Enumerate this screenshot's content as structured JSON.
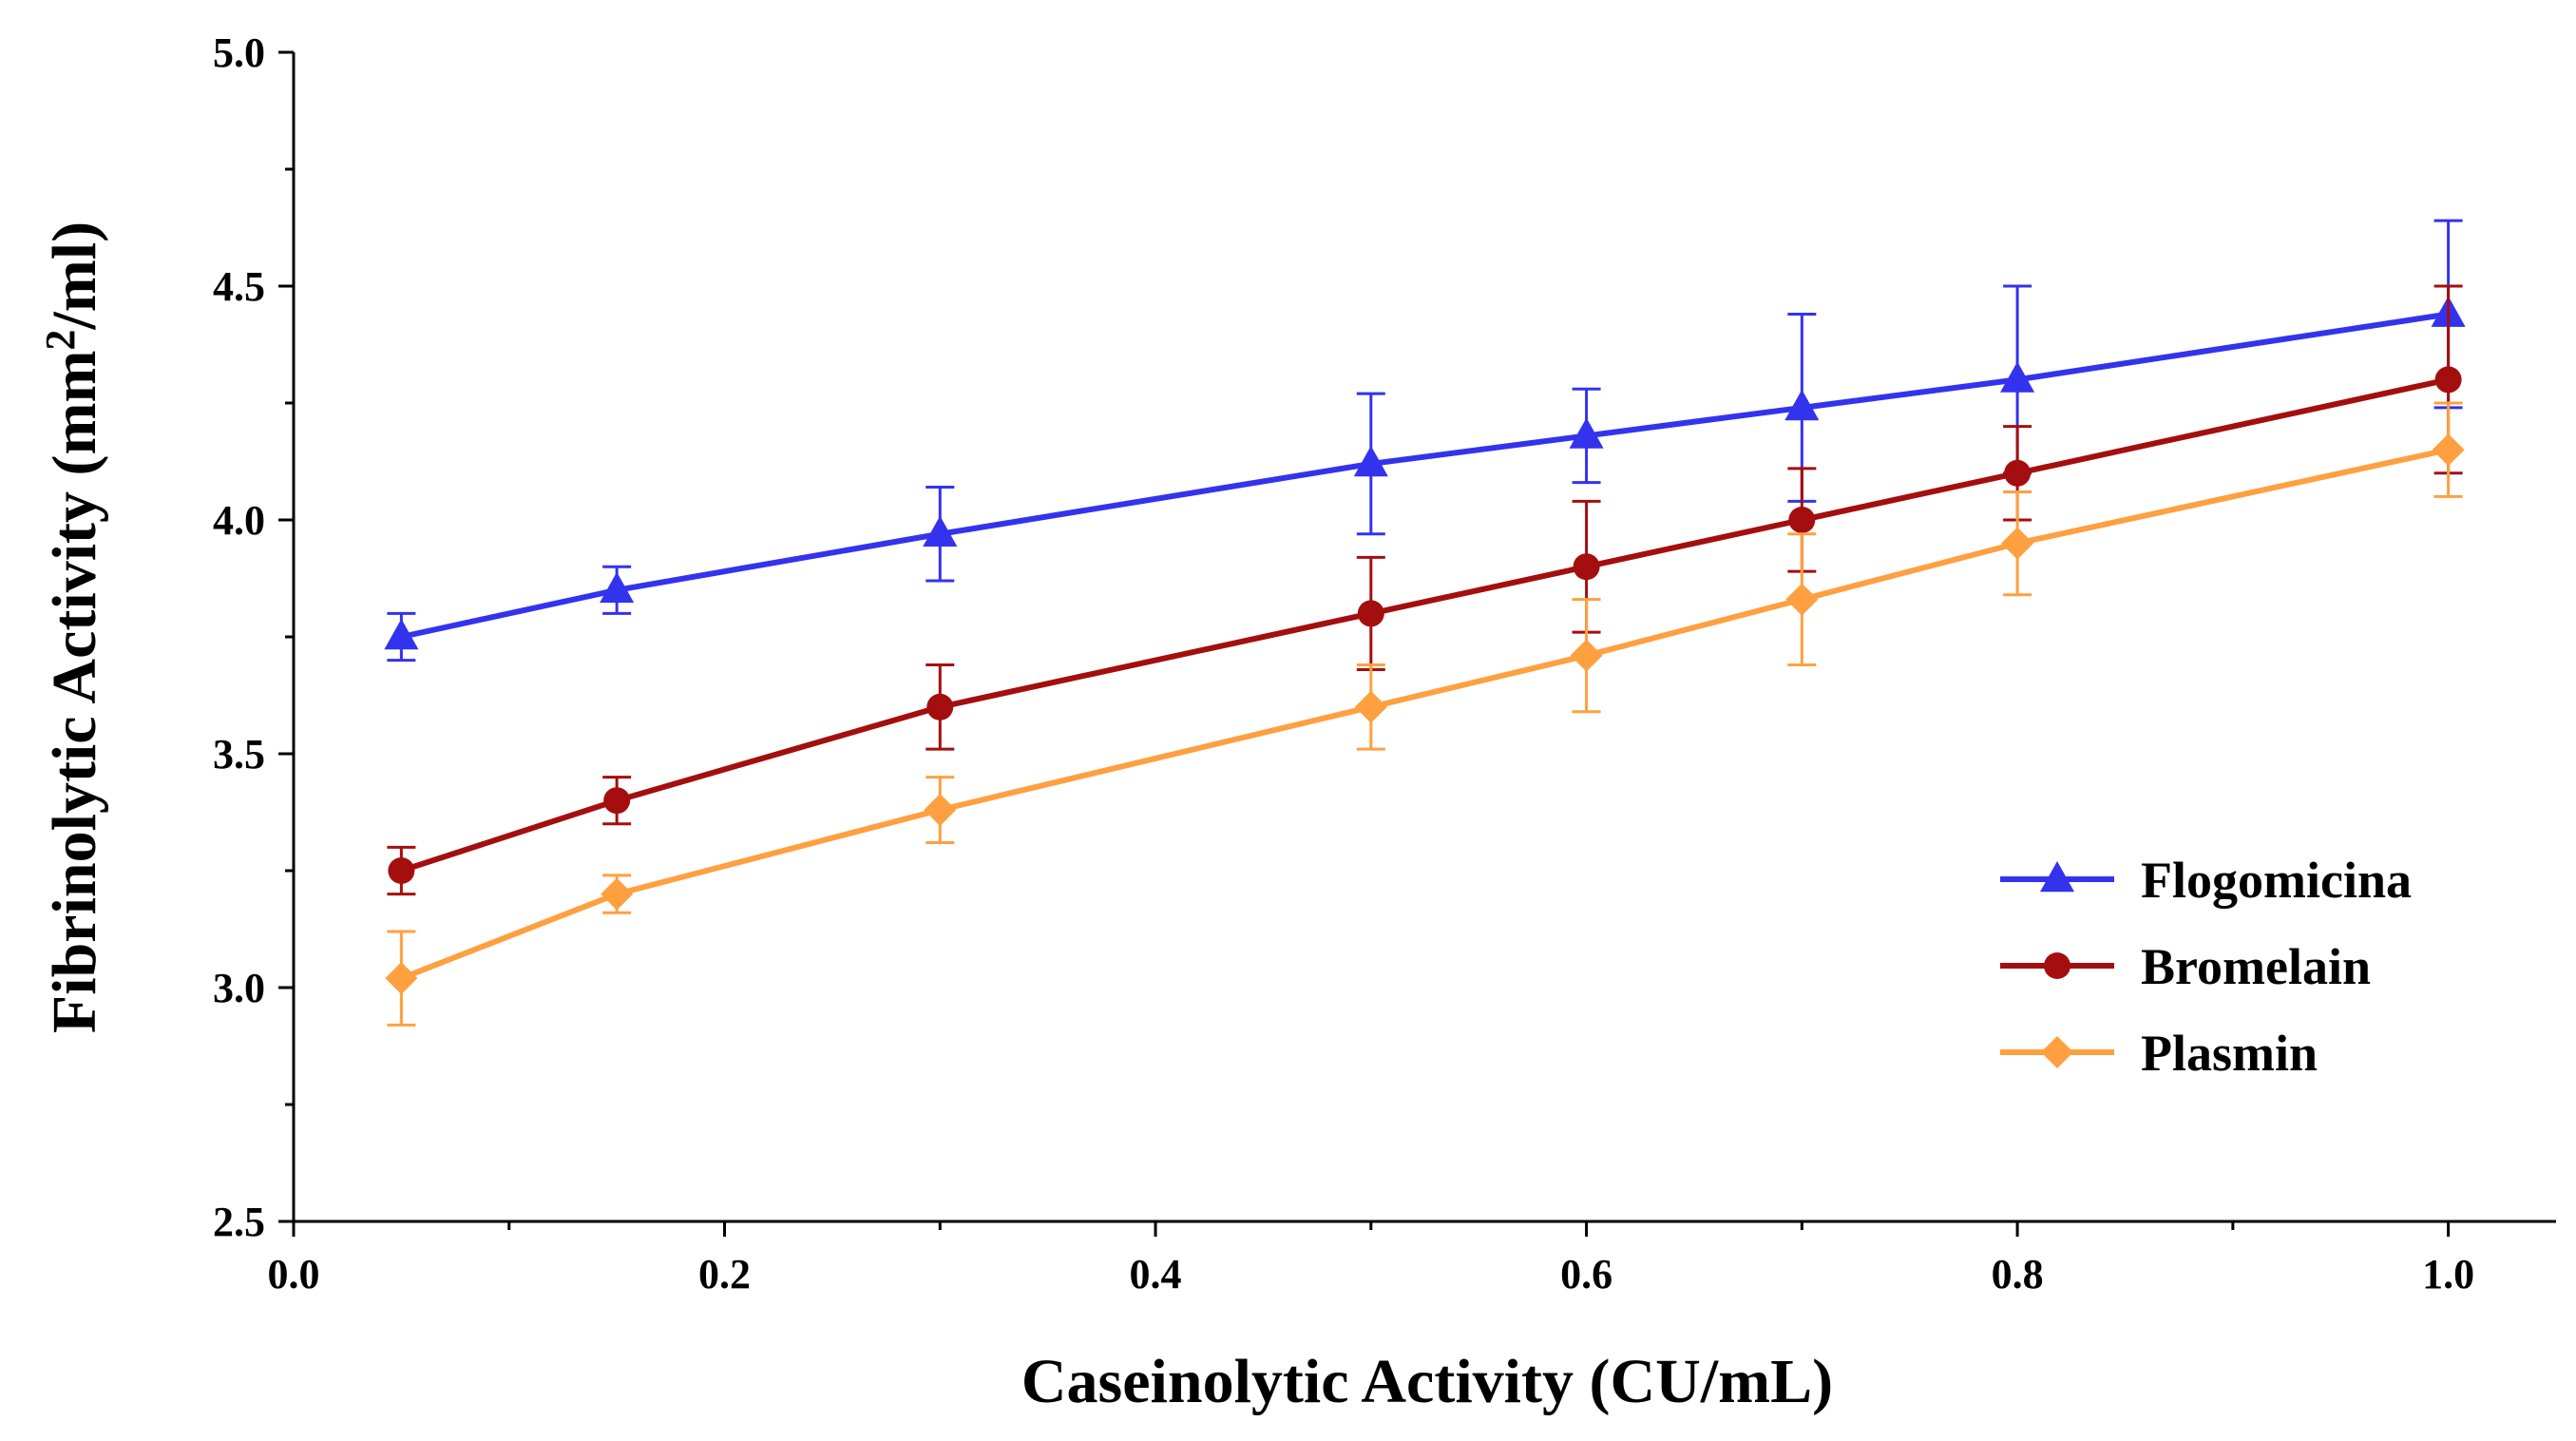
{
  "chart_data": {
    "type": "line",
    "title": "",
    "xlabel": "Caseinolytic Activity (CU/mL)",
    "ylabel": "Fibrinolytic Activity (mm",
    "ylabel_sup": "2",
    "ylabel_tail": "/ml)",
    "xlim": [
      0.0,
      1.05
    ],
    "ylim": [
      2.5,
      5.0
    ],
    "xticks": [
      0.0,
      0.2,
      0.4,
      0.6,
      0.8,
      1.0
    ],
    "xtick_labels": [
      "0.0",
      "0.2",
      "0.4",
      "0.6",
      "0.8",
      "1.0"
    ],
    "xminor_ticks": [
      0.1,
      0.3,
      0.5,
      0.7,
      0.9
    ],
    "yticks": [
      2.5,
      3.0,
      3.5,
      4.0,
      4.5,
      5.0
    ],
    "ytick_labels": [
      "2.5",
      "3.0",
      "3.5",
      "4.0",
      "4.5",
      "5.0"
    ],
    "yminor_ticks": [
      2.75,
      3.25,
      3.75,
      4.25,
      4.75
    ],
    "grid": false,
    "legend_position": "bottom-right",
    "x": [
      0.05,
      0.15,
      0.3,
      0.5,
      0.6,
      0.7,
      0.8,
      1.0
    ],
    "series": [
      {
        "name": "Flogomicina",
        "color": "#3333ee",
        "marker": "triangle",
        "values": [
          3.75,
          3.85,
          3.97,
          4.12,
          4.18,
          4.24,
          4.3,
          4.44
        ],
        "errors": [
          0.05,
          0.05,
          0.1,
          0.15,
          0.1,
          0.2,
          0.2,
          0.2
        ]
      },
      {
        "name": "Bromelain",
        "color": "#a50e0e",
        "marker": "circle",
        "values": [
          3.25,
          3.4,
          3.6,
          3.8,
          3.9,
          4.0,
          4.1,
          4.3
        ],
        "errors": [
          0.05,
          0.05,
          0.09,
          0.12,
          0.14,
          0.11,
          0.1,
          0.2
        ]
      },
      {
        "name": "Plasmin",
        "color": "#ffa040",
        "marker": "diamond",
        "values": [
          3.02,
          3.2,
          3.38,
          3.6,
          3.71,
          3.83,
          3.95,
          4.15
        ],
        "errors": [
          0.1,
          0.04,
          0.07,
          0.09,
          0.12,
          0.14,
          0.11,
          0.1
        ]
      }
    ]
  }
}
